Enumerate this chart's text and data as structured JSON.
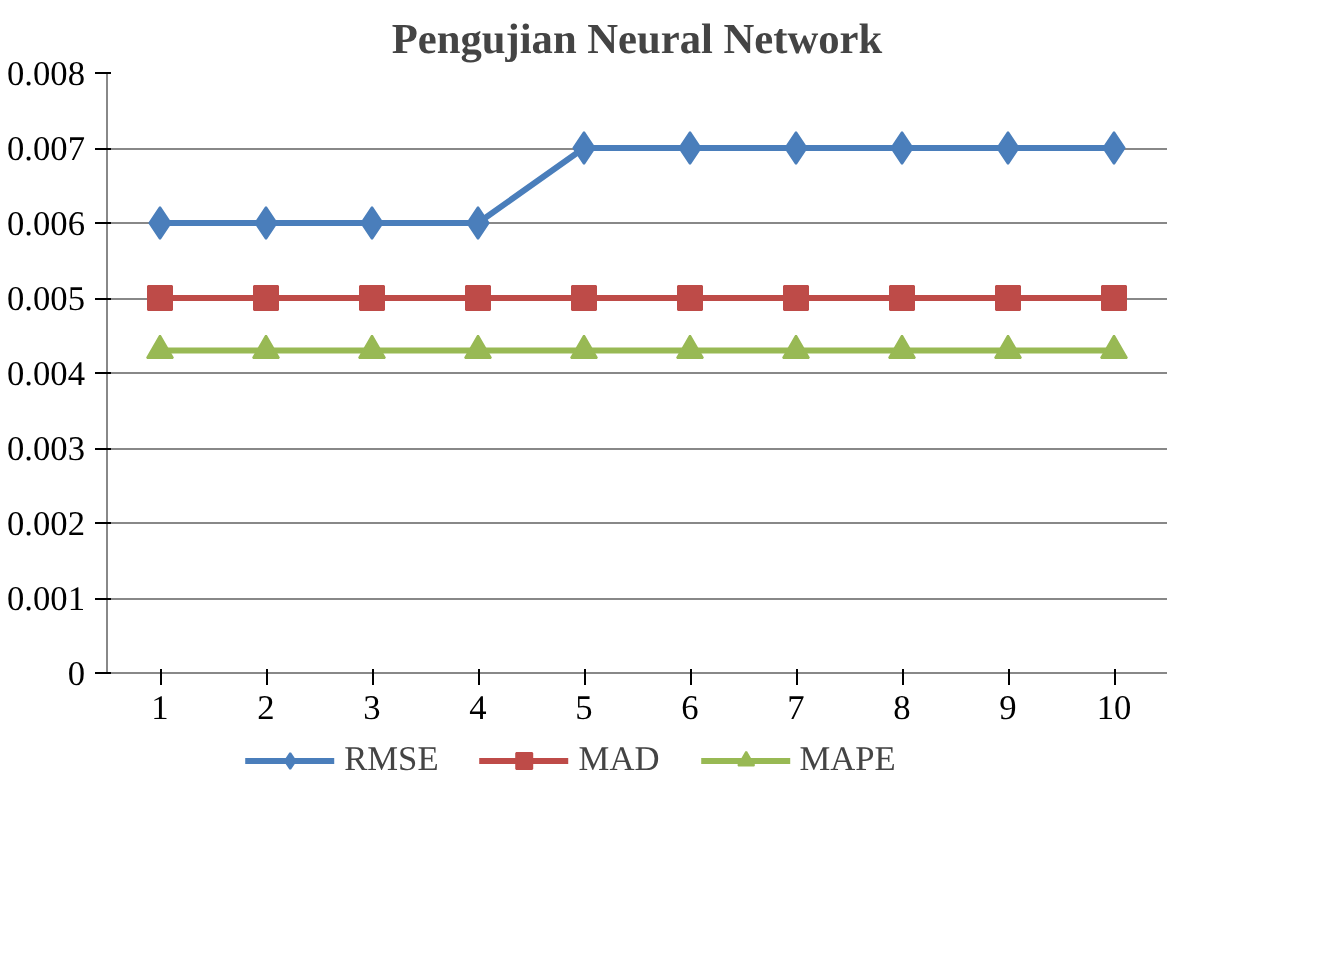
{
  "chart_data": {
    "type": "line",
    "title": "Pengujian Neural Network",
    "categories": [
      "1",
      "2",
      "3",
      "4",
      "5",
      "6",
      "7",
      "8",
      "9",
      "10"
    ],
    "series": [
      {
        "name": "RMSE",
        "color": "#4a7ebb",
        "marker": "diamond",
        "values": [
          0.006,
          0.006,
          0.006,
          0.006,
          0.007,
          0.007,
          0.007,
          0.007,
          0.007,
          0.007
        ]
      },
      {
        "name": "MAD",
        "color": "#be4b48",
        "marker": "square",
        "values": [
          0.005,
          0.005,
          0.005,
          0.005,
          0.005,
          0.005,
          0.005,
          0.005,
          0.005,
          0.005
        ]
      },
      {
        "name": "MAPE",
        "color": "#98b954",
        "marker": "triangle",
        "values": [
          0.0043,
          0.0043,
          0.0043,
          0.0043,
          0.0043,
          0.0043,
          0.0043,
          0.0043,
          0.0043,
          0.0043
        ]
      }
    ],
    "ylim": [
      0,
      0.008
    ],
    "yticks": [
      0,
      0.001,
      0.002,
      0.003,
      0.004,
      0.005,
      0.006,
      0.007,
      0.008
    ],
    "grid": "y",
    "legend": "bottom",
    "line_style": "solid"
  }
}
